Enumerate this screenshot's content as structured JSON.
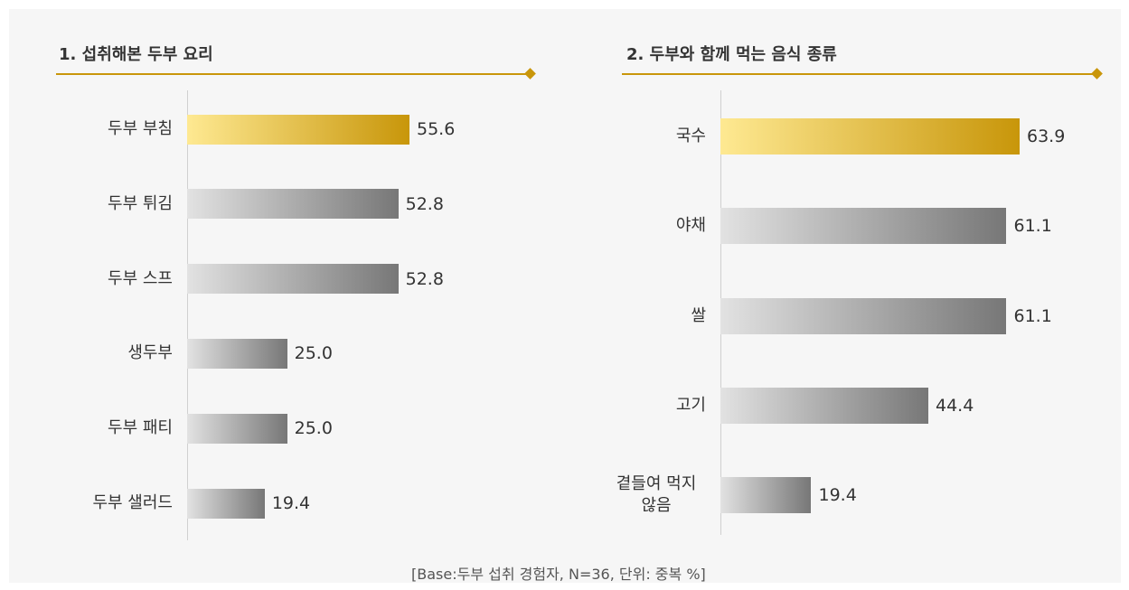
{
  "chart_data": [
    {
      "type": "bar",
      "orientation": "horizontal",
      "title": "1. 섭취해본 두부 요리",
      "categories": [
        "두부 부침",
        "두부 튀김",
        "두부 스프",
        "생두부",
        "두부 패티",
        "두부 샐러드"
      ],
      "values": [
        55.6,
        52.8,
        52.8,
        25.0,
        25.0,
        19.4
      ],
      "value_labels": [
        "55.6",
        "52.8",
        "52.8",
        "25.0",
        "25.0",
        "19.4"
      ],
      "highlight_color": [
        "#fee992",
        "#c8960a"
      ],
      "color": [
        "#e2e2e2",
        "#777777"
      ]
    },
    {
      "type": "bar",
      "orientation": "horizontal",
      "title": "2. 두부와 함께  먹는 음식 종류",
      "categories": [
        "국수",
        "야채",
        "쌀",
        "고기",
        "곁들여 먹지 않음"
      ],
      "values": [
        63.9,
        61.1,
        61.1,
        44.4,
        19.4
      ],
      "value_labels": [
        "63.9",
        "61.1",
        "61.1",
        "44.4",
        "19.4"
      ],
      "highlight_color": [
        "#fee992",
        "#c8960a"
      ],
      "color": [
        "#e2e2e2",
        "#777777"
      ]
    }
  ],
  "footnote": "[Base:두부 섭취 경험자, N=36, 단위: 중복 %]"
}
